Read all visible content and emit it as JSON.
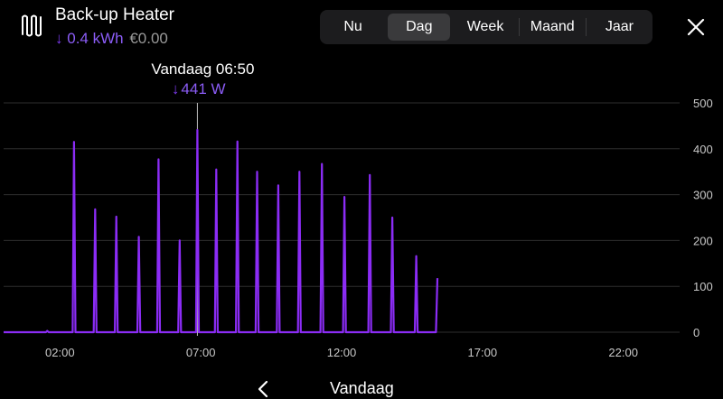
{
  "header": {
    "title": "Back-up Heater",
    "energy": "0.4 kWh",
    "cost": "€0.00"
  },
  "tabs": [
    {
      "label": "Nu",
      "active": false
    },
    {
      "label": "Dag",
      "active": true
    },
    {
      "label": "Week",
      "active": false
    },
    {
      "label": "Maand",
      "active": false
    },
    {
      "label": "Jaar",
      "active": false
    }
  ],
  "tooltip": {
    "time": "Vandaag 06:50",
    "value": "441 W"
  },
  "footer": {
    "label": "Vandaag"
  },
  "colors": {
    "accent": "#7c3aed",
    "line": "#8b2cf5"
  },
  "chart_data": {
    "type": "line",
    "x_unit": "hours",
    "xlim": [
      0,
      24
    ],
    "ylim": [
      0,
      500
    ],
    "y_ticks": [
      0,
      100,
      200,
      300,
      400,
      500
    ],
    "x_ticks": [
      {
        "value": 2,
        "label": "02:00"
      },
      {
        "value": 7,
        "label": "07:00"
      },
      {
        "value": 12,
        "label": "12:00"
      },
      {
        "value": 17,
        "label": "17:00"
      },
      {
        "value": 22,
        "label": "22:00"
      }
    ],
    "series": [
      {
        "points": [
          [
            0,
            0
          ],
          [
            1.5,
            0
          ],
          [
            1.55,
            3
          ],
          [
            1.6,
            0
          ],
          [
            2.45,
            0
          ],
          [
            2.5,
            415
          ],
          [
            2.55,
            0
          ],
          [
            3.2,
            0
          ],
          [
            3.25,
            268
          ],
          [
            3.3,
            0
          ],
          [
            3.95,
            0
          ],
          [
            4.0,
            252
          ],
          [
            4.05,
            0
          ],
          [
            4.75,
            0
          ],
          [
            4.8,
            208
          ],
          [
            4.85,
            0
          ],
          [
            5.45,
            0
          ],
          [
            5.5,
            377
          ],
          [
            5.55,
            0
          ],
          [
            6.2,
            0
          ],
          [
            6.25,
            200
          ],
          [
            6.3,
            0
          ],
          [
            6.83,
            0
          ],
          [
            6.88,
            441
          ],
          [
            6.93,
            0
          ],
          [
            7.5,
            0
          ],
          [
            7.55,
            355
          ],
          [
            7.6,
            0
          ],
          [
            8.25,
            0
          ],
          [
            8.3,
            416
          ],
          [
            8.35,
            0
          ],
          [
            8.95,
            0
          ],
          [
            9.0,
            350
          ],
          [
            9.05,
            0
          ],
          [
            9.7,
            0
          ],
          [
            9.75,
            320
          ],
          [
            9.8,
            0
          ],
          [
            10.45,
            0
          ],
          [
            10.5,
            350
          ],
          [
            10.55,
            0
          ],
          [
            11.25,
            0
          ],
          [
            11.3,
            367
          ],
          [
            11.35,
            0
          ],
          [
            12.05,
            0
          ],
          [
            12.1,
            295
          ],
          [
            12.15,
            0
          ],
          [
            12.95,
            0
          ],
          [
            13.0,
            343
          ],
          [
            13.05,
            0
          ],
          [
            13.75,
            0
          ],
          [
            13.8,
            250
          ],
          [
            13.85,
            0
          ],
          [
            14.6,
            0
          ],
          [
            14.65,
            166
          ],
          [
            14.7,
            0
          ],
          [
            15.35,
            0
          ],
          [
            15.4,
            118
          ]
        ]
      }
    ],
    "cursor_x": 6.88
  }
}
